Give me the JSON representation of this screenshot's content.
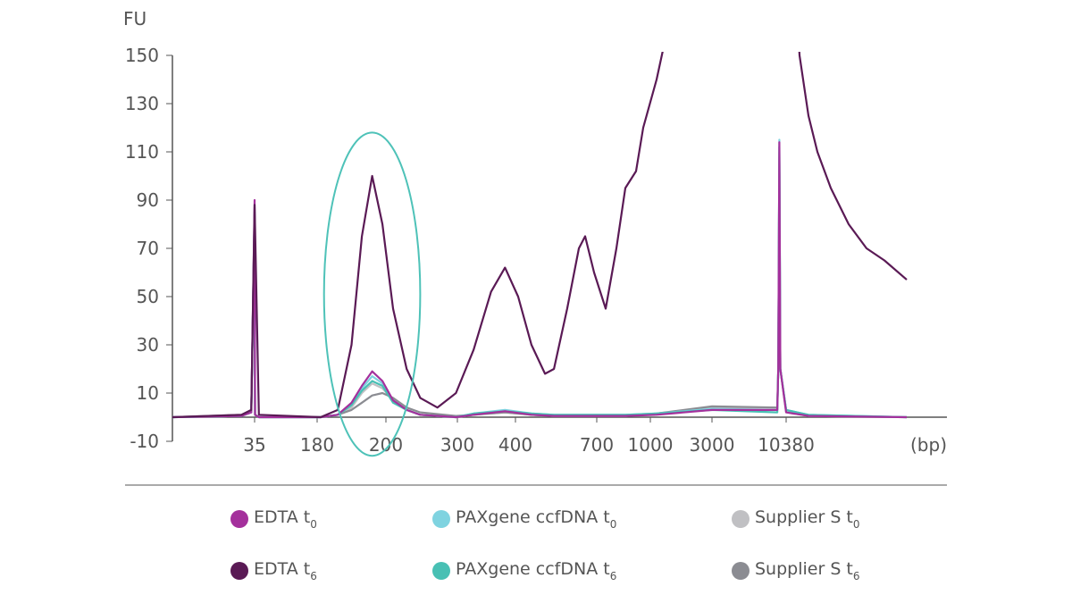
{
  "chart_data": {
    "type": "line",
    "ylabel": "FU",
    "xlabel": "(bp)",
    "ylim": [
      -10,
      150
    ],
    "yticks": [
      150,
      130,
      110,
      90,
      70,
      50,
      30,
      10,
      -10
    ],
    "xticks": [
      35,
      180,
      200,
      300,
      400,
      700,
      1000,
      3000,
      10380
    ],
    "x_scale": "ladder (non-linear)",
    "grid": false,
    "legend_placement": "bottom",
    "annotation": {
      "type": "ellipse",
      "color": "#4ec2b8",
      "x_range": [
        182,
        248
      ],
      "y_range": [
        -16,
        118
      ]
    },
    "series": [
      {
        "name": "EDTA t0",
        "label": "EDTA t",
        "sub": "0",
        "color": "#a4309c",
        "points": [
          [
            10,
            0
          ],
          [
            31,
            0.5
          ],
          [
            34,
            2
          ],
          [
            35,
            90
          ],
          [
            36,
            1
          ],
          [
            45,
            0
          ],
          [
            181,
            0
          ],
          [
            186,
            1
          ],
          [
            190,
            6
          ],
          [
            193,
            13
          ],
          [
            196,
            19
          ],
          [
            199,
            15
          ],
          [
            210,
            7
          ],
          [
            229,
            3
          ],
          [
            248,
            1
          ],
          [
            298,
            0
          ],
          [
            328,
            1
          ],
          [
            382,
            2.5
          ],
          [
            459,
            1
          ],
          [
            542,
            0.5
          ],
          [
            860,
            0.5
          ],
          [
            1203,
            1
          ],
          [
            3000,
            3
          ],
          [
            9500,
            3
          ],
          [
            9600,
            20
          ],
          [
            9700,
            114
          ],
          [
            9800,
            20
          ],
          [
            10380,
            2
          ],
          [
            11300,
            0.5
          ],
          [
            15345,
            0
          ]
        ]
      },
      {
        "name": "EDTA t6",
        "label": "EDTA t",
        "sub": "6",
        "color": "#5a1a55",
        "points": [
          [
            10,
            0
          ],
          [
            31,
            1
          ],
          [
            34,
            3
          ],
          [
            35,
            88
          ],
          [
            45,
            1
          ],
          [
            181,
            0
          ],
          [
            186,
            3
          ],
          [
            190,
            30
          ],
          [
            193,
            75
          ],
          [
            196,
            100
          ],
          [
            199,
            80
          ],
          [
            210,
            45
          ],
          [
            229,
            20
          ],
          [
            248,
            8
          ],
          [
            272,
            4
          ],
          [
            298,
            10
          ],
          [
            328,
            28
          ],
          [
            358,
            52
          ],
          [
            382,
            62
          ],
          [
            410,
            50
          ],
          [
            459,
            30
          ],
          [
            509,
            18
          ],
          [
            542,
            20
          ],
          [
            591,
            45
          ],
          [
            634,
            70
          ],
          [
            657,
            75
          ],
          [
            690,
            60
          ],
          [
            750,
            45
          ],
          [
            810,
            70
          ],
          [
            860,
            95
          ],
          [
            920,
            102
          ],
          [
            960,
            120
          ],
          [
            1203,
            140
          ],
          [
            1406,
            152
          ],
          [
            3036,
            250
          ],
          [
            10380,
            250
          ],
          [
            10932,
            150
          ],
          [
            11300,
            125
          ],
          [
            11667,
            110
          ],
          [
            12219,
            95
          ],
          [
            12954,
            80
          ],
          [
            13690,
            70
          ],
          [
            14426,
            65
          ],
          [
            15345,
            57
          ]
        ]
      },
      {
        "name": "PAXgene ccfDNA t0",
        "label": "PAXgene ccfDNA t",
        "sub": "0",
        "color": "#7fd3e0",
        "points": [
          [
            10,
            0
          ],
          [
            31,
            0.5
          ],
          [
            34,
            2
          ],
          [
            35,
            86
          ],
          [
            36,
            1
          ],
          [
            45,
            0
          ],
          [
            181,
            0
          ],
          [
            186,
            1
          ],
          [
            190,
            5
          ],
          [
            193,
            12
          ],
          [
            196,
            17
          ],
          [
            199,
            14
          ],
          [
            210,
            7
          ],
          [
            229,
            3
          ],
          [
            248,
            1
          ],
          [
            298,
            0
          ],
          [
            328,
            1.5
          ],
          [
            382,
            3
          ],
          [
            459,
            1.5
          ],
          [
            542,
            1
          ],
          [
            860,
            1
          ],
          [
            1203,
            1.5
          ],
          [
            3000,
            3.5
          ],
          [
            9500,
            3
          ],
          [
            9600,
            20
          ],
          [
            9700,
            115
          ],
          [
            9800,
            20
          ],
          [
            10380,
            3
          ],
          [
            11300,
            1
          ],
          [
            15345,
            0
          ]
        ]
      },
      {
        "name": "PAXgene ccfDNA t6",
        "label": "PAXgene ccfDNA t",
        "sub": "6",
        "color": "#48c0b4",
        "points": [
          [
            10,
            0
          ],
          [
            31,
            0.5
          ],
          [
            34,
            2
          ],
          [
            35,
            85
          ],
          [
            36,
            1
          ],
          [
            45,
            0
          ],
          [
            181,
            0
          ],
          [
            186,
            1
          ],
          [
            190,
            5
          ],
          [
            193,
            11
          ],
          [
            196,
            15
          ],
          [
            199,
            13
          ],
          [
            210,
            6
          ],
          [
            229,
            3
          ],
          [
            248,
            1
          ],
          [
            298,
            0
          ],
          [
            328,
            1.5
          ],
          [
            382,
            2.5
          ],
          [
            459,
            1.5
          ],
          [
            542,
            1
          ],
          [
            860,
            1
          ],
          [
            1203,
            1.5
          ],
          [
            3000,
            3
          ],
          [
            9500,
            2
          ],
          [
            9600,
            20
          ],
          [
            9700,
            112
          ],
          [
            9800,
            20
          ],
          [
            10380,
            3
          ],
          [
            11300,
            1
          ],
          [
            15345,
            0
          ]
        ]
      },
      {
        "name": "Supplier S t0",
        "label": "Supplier S t",
        "sub": "0",
        "color": "#c0c0c3",
        "points": [
          [
            10,
            0
          ],
          [
            31,
            0.5
          ],
          [
            34,
            2
          ],
          [
            35,
            87
          ],
          [
            36,
            1
          ],
          [
            45,
            0
          ],
          [
            181,
            0
          ],
          [
            186,
            1
          ],
          [
            190,
            4
          ],
          [
            193,
            10
          ],
          [
            196,
            14
          ],
          [
            199,
            12
          ],
          [
            210,
            7
          ],
          [
            229,
            3
          ],
          [
            248,
            1
          ],
          [
            298,
            0
          ],
          [
            328,
            1
          ],
          [
            382,
            2
          ],
          [
            459,
            1
          ],
          [
            542,
            0.5
          ],
          [
            860,
            0.5
          ],
          [
            1203,
            1.5
          ],
          [
            3000,
            4
          ],
          [
            9500,
            4
          ],
          [
            9600,
            20
          ],
          [
            9700,
            110
          ],
          [
            9800,
            20
          ],
          [
            10380,
            2
          ],
          [
            11300,
            0.5
          ],
          [
            15345,
            0
          ]
        ]
      },
      {
        "name": "Supplier S t6",
        "label": "Supplier S t",
        "sub": "6",
        "color": "#8b8c92",
        "points": [
          [
            10,
            0
          ],
          [
            31,
            1
          ],
          [
            34,
            3
          ],
          [
            35,
            84
          ],
          [
            36,
            1
          ],
          [
            45,
            0
          ],
          [
            181,
            0
          ],
          [
            186,
            1
          ],
          [
            190,
            3
          ],
          [
            193,
            6
          ],
          [
            196,
            9
          ],
          [
            199,
            10
          ],
          [
            210,
            8
          ],
          [
            229,
            4
          ],
          [
            248,
            2
          ],
          [
            298,
            0.5
          ],
          [
            328,
            1
          ],
          [
            382,
            2
          ],
          [
            459,
            1
          ],
          [
            542,
            0.5
          ],
          [
            860,
            0.5
          ],
          [
            1203,
            1.5
          ],
          [
            3000,
            4.5
          ],
          [
            9500,
            4
          ],
          [
            9600,
            20
          ],
          [
            9700,
            108
          ],
          [
            9800,
            20
          ],
          [
            10380,
            3
          ],
          [
            11300,
            0.5
          ],
          [
            15345,
            0
          ]
        ]
      }
    ]
  }
}
